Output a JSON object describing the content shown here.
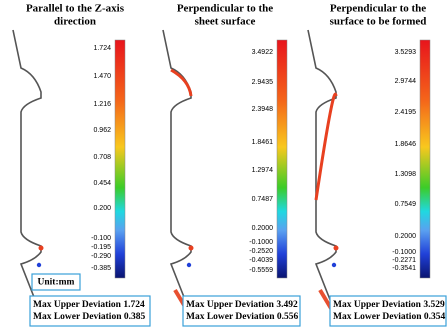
{
  "unit": "Unit:mm",
  "panels": [
    {
      "title": [
        "Parallel to the Z-axis",
        "direction"
      ],
      "scale": [
        "1.724",
        "1.470",
        "1.216",
        "0.962",
        "0.708",
        "0.454",
        "0.200",
        "-0.100",
        "-0.195",
        "-0.290",
        "-0.385"
      ],
      "deviation": [
        "Max Upper Deviation 1.724",
        "Max Lower Deviation 0.385"
      ]
    },
    {
      "title": [
        "Perpendicular to the",
        "sheet surface"
      ],
      "scale": [
        "3.4922",
        "2.9435",
        "2.3948",
        "1.8461",
        "1.2974",
        "0.7487",
        "0.2000",
        "-0.1000",
        "-0.2520",
        "-0.4039",
        "-0.5559"
      ],
      "deviation": [
        "Max Upper Deviation 3.492",
        "Max Lower Deviation 0.556"
      ]
    },
    {
      "title": [
        "Perpendicular to the",
        "surface to be formed"
      ],
      "scale": [
        "3.5293",
        "2.9744",
        "2.4195",
        "1.8646",
        "1.3098",
        "0.7549",
        "0.2000",
        "-0.1000",
        "-0.2271",
        "-0.3541"
      ],
      "deviation": [
        "Max Upper Deviation 3.529",
        "Max Lower Deviation 0.354"
      ]
    }
  ]
}
